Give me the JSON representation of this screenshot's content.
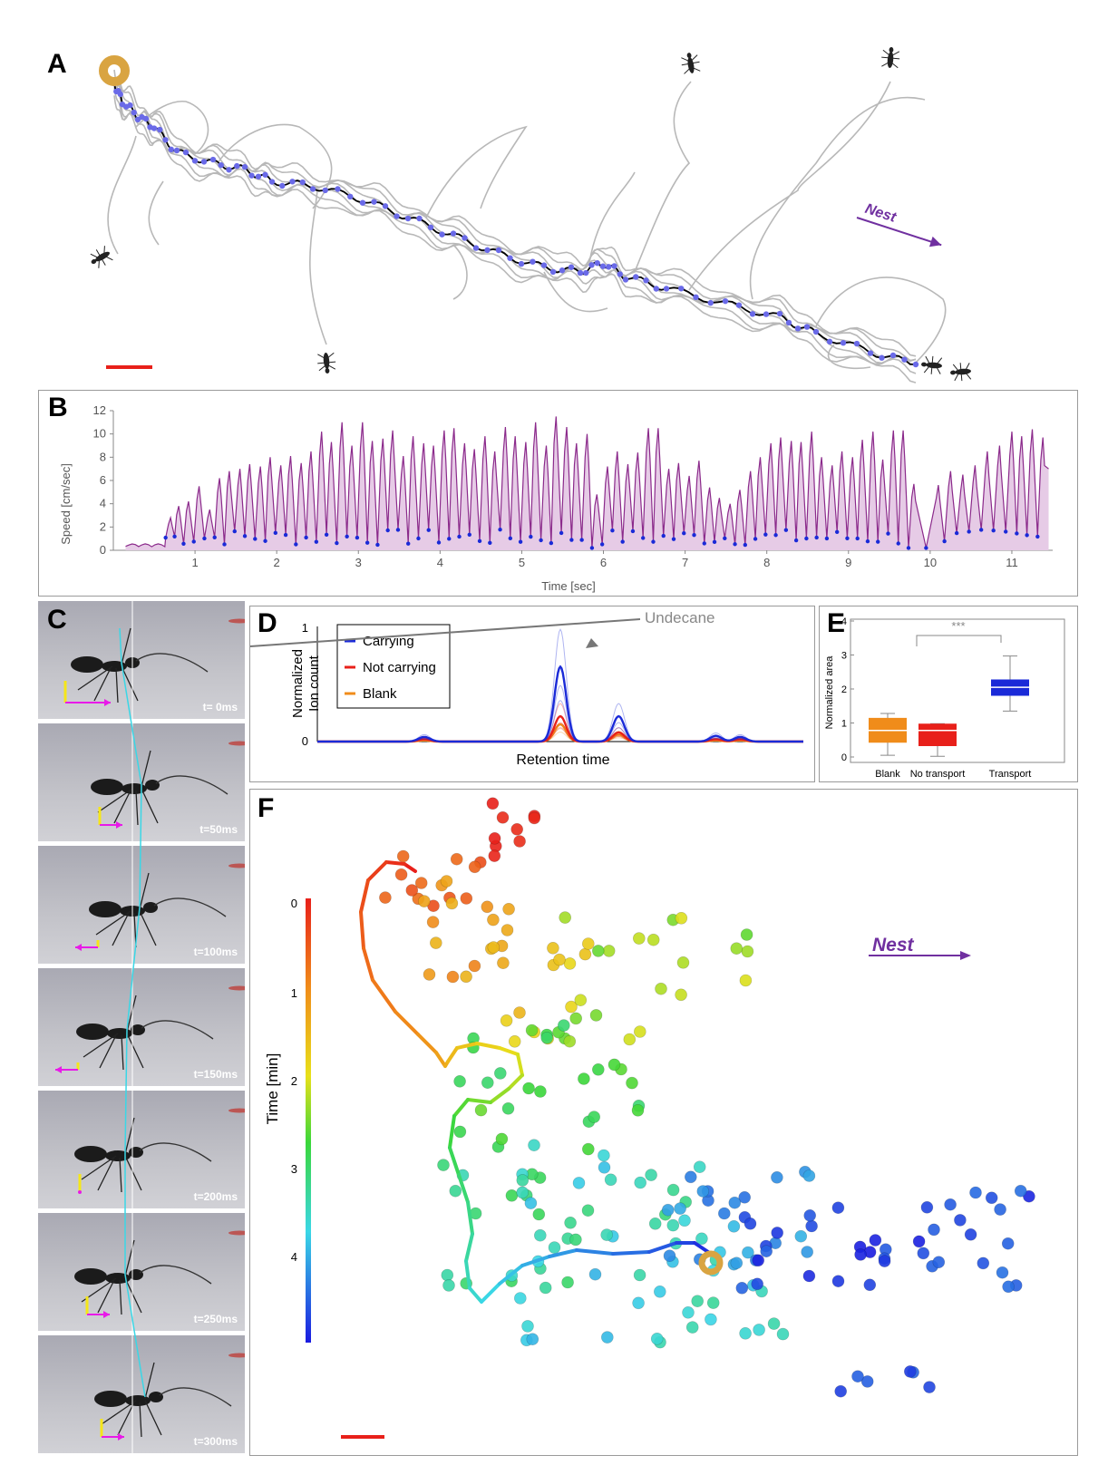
{
  "panels": {
    "a": {
      "letter": "A",
      "nest_label": "Nest"
    },
    "b": {
      "letter": "B"
    },
    "c": {
      "letter": "C",
      "timestamps": [
        "t= 0ms",
        "t=50ms",
        "t=100ms",
        "t=150ms",
        "t=200ms",
        "t=250ms",
        "t=300ms"
      ]
    },
    "d": {
      "letter": "D",
      "annotation": "Undecane"
    },
    "e": {
      "letter": "E",
      "significance": "***"
    },
    "f": {
      "letter": "F",
      "nest_label": "Nest"
    }
  },
  "colors": {
    "trail_gray": "#b8b8b8",
    "path_dark": "#000000",
    "step_blue": "#3a3ad8",
    "speed_purple": "#8b2a8b",
    "speed_fill": "#e6cbe6",
    "nest_arrow": "#7030a0",
    "scale_red": "#e8201a",
    "carrying": "#1a2ad8",
    "not_carrying": "#e8201a",
    "blank": "#f08c1a",
    "food_ring": "#d9a441"
  },
  "chart_data": [
    {
      "type": "line",
      "panel": "B",
      "xlabel": "Time [sec]",
      "ylabel": "Speed [cm/sec]",
      "xlim": [
        0,
        11.5
      ],
      "ylim": [
        0,
        12
      ],
      "xticks": [
        1,
        2,
        3,
        4,
        5,
        6,
        7,
        8,
        9,
        10,
        11
      ],
      "yticks": [
        0,
        2,
        4,
        6,
        8,
        10,
        12
      ],
      "step_period_sec": 0.115,
      "peaks": [
        [
          0.7,
          2.8
        ],
        [
          0.8,
          3.8
        ],
        [
          0.92,
          4.2
        ],
        [
          1.05,
          5.5
        ],
        [
          1.18,
          3.5
        ],
        [
          1.3,
          6.2
        ],
        [
          1.42,
          6.8
        ],
        [
          1.55,
          7.0
        ],
        [
          1.67,
          7.4
        ],
        [
          1.8,
          7.2
        ],
        [
          1.92,
          8.0
        ],
        [
          2.05,
          7.3
        ],
        [
          2.17,
          8.1
        ],
        [
          2.3,
          7.5
        ],
        [
          2.42,
          8.5
        ],
        [
          2.55,
          10.2
        ],
        [
          2.67,
          9.3
        ],
        [
          2.8,
          11.0
        ],
        [
          2.92,
          9.0
        ],
        [
          3.05,
          11.0
        ],
        [
          3.17,
          9.4
        ],
        [
          3.3,
          9.6
        ],
        [
          3.42,
          10.3
        ],
        [
          3.55,
          8.1
        ],
        [
          3.67,
          9.8
        ],
        [
          3.8,
          9.2
        ],
        [
          3.92,
          9.0
        ],
        [
          4.05,
          10.3
        ],
        [
          4.17,
          10.5
        ],
        [
          4.3,
          9.2
        ],
        [
          4.42,
          8.7
        ],
        [
          4.55,
          9.8
        ],
        [
          4.67,
          8.5
        ],
        [
          4.8,
          10.6
        ],
        [
          4.92,
          9.8
        ],
        [
          5.05,
          9.3
        ],
        [
          5.17,
          11.0
        ],
        [
          5.3,
          9.0
        ],
        [
          5.42,
          11.5
        ],
        [
          5.55,
          10.6
        ],
        [
          5.67,
          9.2
        ],
        [
          5.8,
          10.0
        ],
        [
          5.92,
          4.8
        ],
        [
          6.05,
          7.2
        ],
        [
          6.17,
          8.5
        ],
        [
          6.3,
          7.4
        ],
        [
          6.42,
          8.4
        ],
        [
          6.55,
          10.5
        ],
        [
          6.67,
          10.5
        ],
        [
          6.8,
          7.0
        ],
        [
          6.92,
          7.5
        ],
        [
          7.05,
          6.4
        ],
        [
          7.17,
          7.7
        ],
        [
          7.3,
          5.4
        ],
        [
          7.42,
          4.5
        ],
        [
          7.55,
          4.0
        ],
        [
          7.67,
          5.2
        ],
        [
          7.8,
          6.8
        ],
        [
          7.92,
          8.0
        ],
        [
          8.05,
          9.2
        ],
        [
          8.17,
          9.7
        ],
        [
          8.3,
          9.4
        ],
        [
          8.42,
          9.3
        ],
        [
          8.55,
          10.2
        ],
        [
          8.67,
          8.0
        ],
        [
          8.8,
          7.3
        ],
        [
          8.92,
          8.5
        ],
        [
          9.05,
          8.0
        ],
        [
          9.17,
          9.5
        ],
        [
          9.3,
          10.2
        ],
        [
          9.42,
          7.8
        ],
        [
          9.55,
          10.3
        ],
        [
          9.67,
          10.3
        ],
        [
          9.8,
          5.7
        ],
        [
          10.1,
          5.6
        ],
        [
          10.25,
          6.8
        ],
        [
          10.4,
          6.5
        ],
        [
          10.55,
          7.3
        ],
        [
          10.7,
          8.5
        ],
        [
          10.85,
          9.0
        ],
        [
          11.0,
          10.2
        ],
        [
          11.12,
          9.8
        ],
        [
          11.25,
          10.4
        ],
        [
          11.38,
          9.7
        ]
      ],
      "troughs_note": "blue dots mark step minima near 0.3–2.0 cm/sec"
    },
    {
      "type": "line",
      "panel": "D",
      "xlabel": "Retention time",
      "ylabel": "Normalized Ion count",
      "yticks": [
        0,
        1
      ],
      "ylim": [
        0,
        1
      ],
      "series": [
        {
          "name": "Carrying",
          "peaks": [
            [
              0.22,
              0.04
            ],
            [
              0.5,
              0.65
            ],
            [
              0.62,
              0.22
            ],
            [
              0.82,
              0.05
            ],
            [
              0.87,
              0.04
            ]
          ]
        },
        {
          "name": "Not carrying",
          "peaks": [
            [
              0.22,
              0.02
            ],
            [
              0.5,
              0.22
            ],
            [
              0.62,
              0.08
            ],
            [
              0.82,
              0.02
            ],
            [
              0.87,
              0.02
            ]
          ]
        },
        {
          "name": "Blank",
          "peaks": [
            [
              0.22,
              0.01
            ],
            [
              0.5,
              0.15
            ],
            [
              0.62,
              0.06
            ],
            [
              0.82,
              0.01
            ],
            [
              0.87,
              0.01
            ]
          ]
        }
      ]
    },
    {
      "type": "box",
      "panel": "E",
      "ylabel": "Normalized area",
      "ylim": [
        0,
        4
      ],
      "yticks": [
        0,
        1,
        2,
        3,
        4
      ],
      "categories": [
        "Blank",
        "No transport",
        "Transport"
      ],
      "boxes": [
        {
          "name": "Blank",
          "min": 0.05,
          "q1": 0.42,
          "median": 0.78,
          "q3": 1.15,
          "max": 1.28
        },
        {
          "name": "No transport",
          "min": 0.02,
          "q1": 0.32,
          "median": 0.78,
          "q3": 0.98,
          "max": 0.98
        },
        {
          "name": "Transport",
          "min": 1.35,
          "q1": 1.8,
          "median": 2.05,
          "q3": 2.28,
          "max": 2.97
        }
      ]
    }
  ],
  "panel_f": {
    "colorbar_label": "Time [min]",
    "colorbar_ticks": [
      "0",
      "1",
      "2",
      "3",
      "4"
    ]
  }
}
